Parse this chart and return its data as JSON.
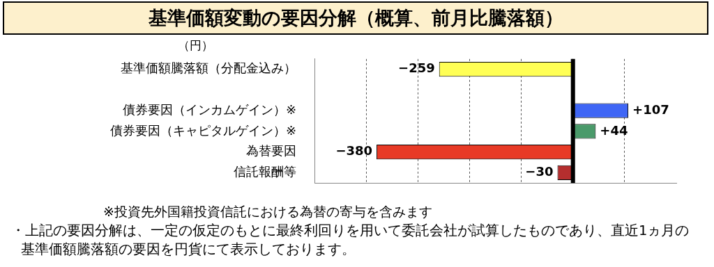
{
  "chart_data": {
    "type": "bar",
    "orientation": "horizontal",
    "title": "基準価額変動の要因分解（概算、前月比騰落額）",
    "categories": [
      "基準価額騰落額（分配金込み）",
      null,
      "債券要因（インカムゲイン）※",
      "債券要因（キャピタルゲイン）※",
      "為替要因",
      "信託報酬等"
    ],
    "values": [
      -259,
      null,
      107,
      44,
      -380,
      -30
    ],
    "colors": [
      "#ffff55",
      "#ffffff",
      "#3f66f5",
      "#4a9a6a",
      "#e83a26",
      "#b52e2e"
    ],
    "value_labels": [
      "−259",
      null,
      "+107",
      "+44",
      "−380",
      "−30"
    ],
    "xlim": [
      -500,
      200
    ],
    "xticks": [
      {
        "value": -400,
        "label": null
      },
      {
        "value": -300,
        "label": null
      },
      {
        "value": -200,
        "label": null
      },
      {
        "value": -100,
        "label": null
      },
      {
        "value": 0,
        "label": null
      },
      {
        "value": 100,
        "label": null
      }
    ],
    "grid": "x",
    "annotations": [
      "（円）",
      "※投資先外国籍投資信託における為替の寄与を含みます",
      "・上記の要因分解は、一定の仮定のもとに最終利回りを用いて委託会社が試算したものであり、直近1ヵ月の基準価額騰落額の要因を円貨にて表示しております。"
    ]
  }
}
